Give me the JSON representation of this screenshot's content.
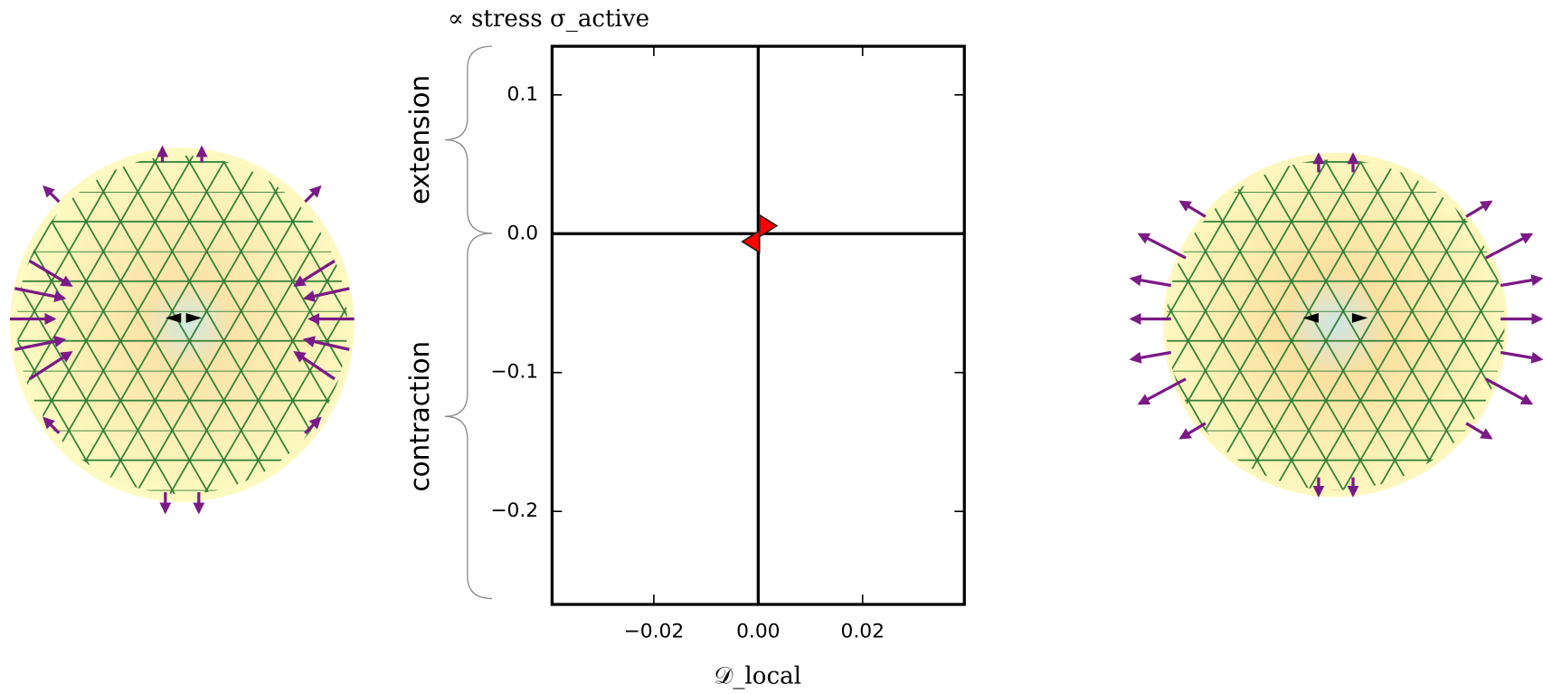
{
  "chart_data": {
    "type": "scatter",
    "title": "∝ stress σ_active",
    "xlabel": "𝒟_local",
    "annotations": [
      "extension",
      "contraction"
    ],
    "x": [
      0.0015,
      -0.001
    ],
    "y": [
      0.0057,
      -0.0057
    ],
    "markers": [
      "right",
      "left"
    ],
    "color": "#ff0000",
    "xlim": [
      -0.0395,
      0.0395
    ],
    "ylim": [
      -0.267,
      0.135
    ],
    "xticks": [
      {
        "value": -0.02,
        "label": "−0.02"
      },
      {
        "value": 0,
        "label": "0.00"
      },
      {
        "value": 0.02,
        "label": "0.02"
      }
    ],
    "yticks": [
      {
        "value": -0.2,
        "label": "−0.2"
      },
      {
        "value": -0.1,
        "label": "−0.1"
      },
      {
        "value": 0,
        "label": "0.0"
      },
      0.1
    ]
  }
}
